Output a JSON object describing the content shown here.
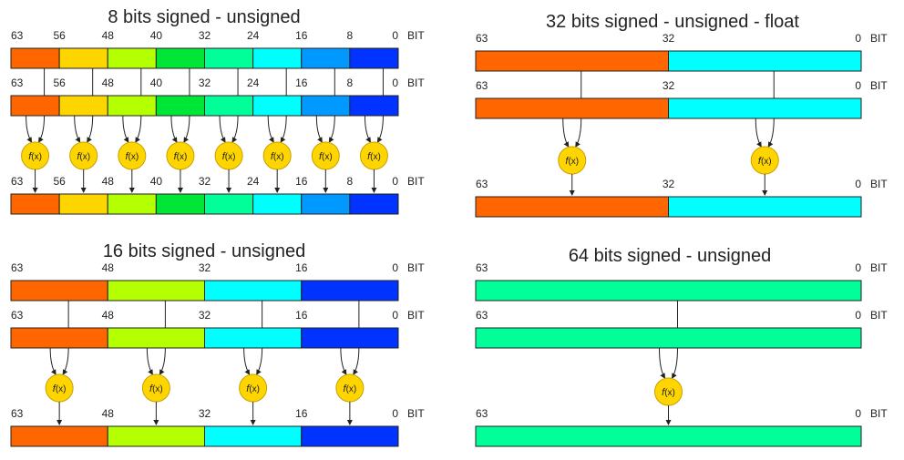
{
  "colors": {
    "orange": "#ff6600",
    "yellow": "#ffd500",
    "lime": "#b4ff00",
    "green": "#00e636",
    "spring": "#00ff99",
    "cyan": "#00ffff",
    "azure": "#0099ff",
    "blue": "#0033ff",
    "func": "#ffd500",
    "funcStroke": "#c8a000",
    "line": "#222222"
  },
  "bit_word": "BIT",
  "function_label": "f",
  "function_arg": "(x)",
  "panels": [
    {
      "id": "8bit",
      "title": "8 bits signed - unsigned",
      "segments": [
        {
          "label": "63",
          "color": "orange"
        },
        {
          "label": "56",
          "color": "yellow"
        },
        {
          "label": "48",
          "color": "lime"
        },
        {
          "label": "40",
          "color": "green"
        },
        {
          "label": "32",
          "color": "spring"
        },
        {
          "label": "24",
          "color": "cyan"
        },
        {
          "label": "16",
          "color": "azure"
        },
        {
          "label": "8",
          "color": "blue"
        }
      ],
      "end_label": "0"
    },
    {
      "id": "32bit",
      "title": "32 bits signed - unsigned - float",
      "segments": [
        {
          "label": "63",
          "color": "orange"
        },
        {
          "label": "32",
          "color": "cyan"
        }
      ],
      "end_label": "0"
    },
    {
      "id": "16bit",
      "title": "16 bits signed - unsigned",
      "segments": [
        {
          "label": "63",
          "color": "orange"
        },
        {
          "label": "48",
          "color": "lime"
        },
        {
          "label": "32",
          "color": "cyan"
        },
        {
          "label": "16",
          "color": "blue"
        }
      ],
      "end_label": "0"
    },
    {
      "id": "64bit",
      "title": "64 bits signed - unsigned",
      "segments": [
        {
          "label": "63",
          "color": "spring"
        }
      ],
      "end_label": "0"
    }
  ]
}
